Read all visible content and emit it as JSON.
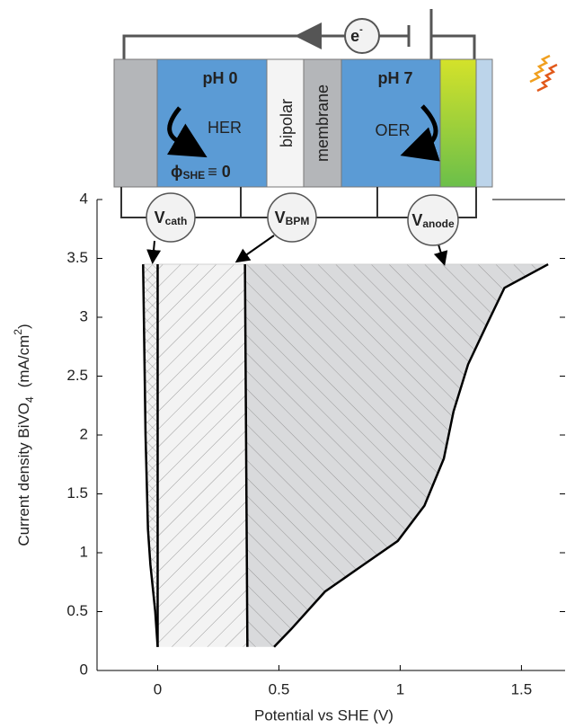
{
  "chart_data": {
    "type": "line",
    "xlabel": "Potential vs SHE (V)",
    "ylabel": {
      "text": "Current density BiVO",
      "sub": "4",
      "unit": "(mA/cm",
      "sup": "2",
      "close": ")"
    },
    "xlim": [
      -0.25,
      1.68
    ],
    "ylim": [
      0,
      4
    ],
    "xticks": [
      0,
      0.5,
      1,
      1.5
    ],
    "yticks": [
      0,
      0.5,
      1,
      1.5,
      2,
      2.5,
      3,
      3.5,
      4
    ],
    "series": [
      {
        "color": "#000000",
        "x": [
          0,
          -0.01,
          -0.03,
          -0.04,
          -0.05,
          -0.06
        ],
        "values": [
          0.2,
          0.5,
          0.9,
          1.2,
          2,
          3.45
        ]
      },
      {
        "color": "#000000",
        "x": [
          0,
          0
        ],
        "values": [
          0.2,
          3.45
        ]
      },
      {
        "color": "#000000",
        "x": [
          0.37,
          0.36
        ],
        "values": [
          0.2,
          3.45
        ]
      },
      {
        "color": "#000000",
        "x": [
          0.48,
          0.55,
          0.69,
          0.85,
          0.99,
          1.1,
          1.18,
          1.22,
          1.28,
          1.36,
          1.43,
          1.61
        ],
        "values": [
          0.2,
          0.35,
          0.67,
          0.9,
          1.1,
          1.4,
          1.8,
          2.2,
          2.6,
          2.95,
          3.25,
          3.45
        ]
      }
    ],
    "schematic": {
      "electron": {
        "main": "e",
        "sup": "-"
      },
      "left_ph": "pH 0",
      "left_reaction": "HER",
      "reference": {
        "symbol": "ϕ",
        "sub": "SHE",
        "rest": "≡ 0"
      },
      "membrane": [
        "bipolar",
        "membrane"
      ],
      "right_ph": "pH 7",
      "right_reaction": "OER",
      "voltages": [
        {
          "main": "V",
          "sub": "cath"
        },
        {
          "main": "V",
          "sub": "BPM"
        },
        {
          "main": "V",
          "sub": "anode"
        }
      ]
    }
  }
}
